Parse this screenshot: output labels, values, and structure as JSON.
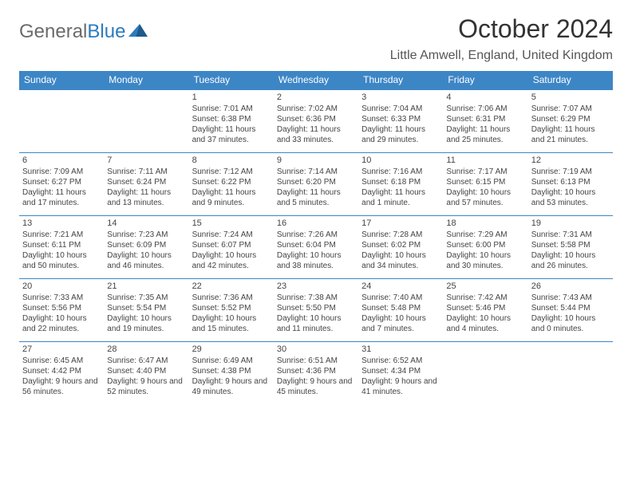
{
  "brand": {
    "part1": "General",
    "part2": "Blue"
  },
  "colors": {
    "header_bg": "#3d86c6",
    "week_border": "#3d86c6",
    "text": "#444444"
  },
  "title": "October 2024",
  "location": "Little Amwell, England, United Kingdom",
  "dow": [
    "Sunday",
    "Monday",
    "Tuesday",
    "Wednesday",
    "Thursday",
    "Friday",
    "Saturday"
  ],
  "weeks": [
    [
      null,
      null,
      {
        "n": "1",
        "sr": "7:01 AM",
        "ss": "6:38 PM",
        "dl": "11 hours and 37 minutes."
      },
      {
        "n": "2",
        "sr": "7:02 AM",
        "ss": "6:36 PM",
        "dl": "11 hours and 33 minutes."
      },
      {
        "n": "3",
        "sr": "7:04 AM",
        "ss": "6:33 PM",
        "dl": "11 hours and 29 minutes."
      },
      {
        "n": "4",
        "sr": "7:06 AM",
        "ss": "6:31 PM",
        "dl": "11 hours and 25 minutes."
      },
      {
        "n": "5",
        "sr": "7:07 AM",
        "ss": "6:29 PM",
        "dl": "11 hours and 21 minutes."
      }
    ],
    [
      {
        "n": "6",
        "sr": "7:09 AM",
        "ss": "6:27 PM",
        "dl": "11 hours and 17 minutes."
      },
      {
        "n": "7",
        "sr": "7:11 AM",
        "ss": "6:24 PM",
        "dl": "11 hours and 13 minutes."
      },
      {
        "n": "8",
        "sr": "7:12 AM",
        "ss": "6:22 PM",
        "dl": "11 hours and 9 minutes."
      },
      {
        "n": "9",
        "sr": "7:14 AM",
        "ss": "6:20 PM",
        "dl": "11 hours and 5 minutes."
      },
      {
        "n": "10",
        "sr": "7:16 AM",
        "ss": "6:18 PM",
        "dl": "11 hours and 1 minute."
      },
      {
        "n": "11",
        "sr": "7:17 AM",
        "ss": "6:15 PM",
        "dl": "10 hours and 57 minutes."
      },
      {
        "n": "12",
        "sr": "7:19 AM",
        "ss": "6:13 PM",
        "dl": "10 hours and 53 minutes."
      }
    ],
    [
      {
        "n": "13",
        "sr": "7:21 AM",
        "ss": "6:11 PM",
        "dl": "10 hours and 50 minutes."
      },
      {
        "n": "14",
        "sr": "7:23 AM",
        "ss": "6:09 PM",
        "dl": "10 hours and 46 minutes."
      },
      {
        "n": "15",
        "sr": "7:24 AM",
        "ss": "6:07 PM",
        "dl": "10 hours and 42 minutes."
      },
      {
        "n": "16",
        "sr": "7:26 AM",
        "ss": "6:04 PM",
        "dl": "10 hours and 38 minutes."
      },
      {
        "n": "17",
        "sr": "7:28 AM",
        "ss": "6:02 PM",
        "dl": "10 hours and 34 minutes."
      },
      {
        "n": "18",
        "sr": "7:29 AM",
        "ss": "6:00 PM",
        "dl": "10 hours and 30 minutes."
      },
      {
        "n": "19",
        "sr": "7:31 AM",
        "ss": "5:58 PM",
        "dl": "10 hours and 26 minutes."
      }
    ],
    [
      {
        "n": "20",
        "sr": "7:33 AM",
        "ss": "5:56 PM",
        "dl": "10 hours and 22 minutes."
      },
      {
        "n": "21",
        "sr": "7:35 AM",
        "ss": "5:54 PM",
        "dl": "10 hours and 19 minutes."
      },
      {
        "n": "22",
        "sr": "7:36 AM",
        "ss": "5:52 PM",
        "dl": "10 hours and 15 minutes."
      },
      {
        "n": "23",
        "sr": "7:38 AM",
        "ss": "5:50 PM",
        "dl": "10 hours and 11 minutes."
      },
      {
        "n": "24",
        "sr": "7:40 AM",
        "ss": "5:48 PM",
        "dl": "10 hours and 7 minutes."
      },
      {
        "n": "25",
        "sr": "7:42 AM",
        "ss": "5:46 PM",
        "dl": "10 hours and 4 minutes."
      },
      {
        "n": "26",
        "sr": "7:43 AM",
        "ss": "5:44 PM",
        "dl": "10 hours and 0 minutes."
      }
    ],
    [
      {
        "n": "27",
        "sr": "6:45 AM",
        "ss": "4:42 PM",
        "dl": "9 hours and 56 minutes."
      },
      {
        "n": "28",
        "sr": "6:47 AM",
        "ss": "4:40 PM",
        "dl": "9 hours and 52 minutes."
      },
      {
        "n": "29",
        "sr": "6:49 AM",
        "ss": "4:38 PM",
        "dl": "9 hours and 49 minutes."
      },
      {
        "n": "30",
        "sr": "6:51 AM",
        "ss": "4:36 PM",
        "dl": "9 hours and 45 minutes."
      },
      {
        "n": "31",
        "sr": "6:52 AM",
        "ss": "4:34 PM",
        "dl": "9 hours and 41 minutes."
      },
      null,
      null
    ]
  ]
}
